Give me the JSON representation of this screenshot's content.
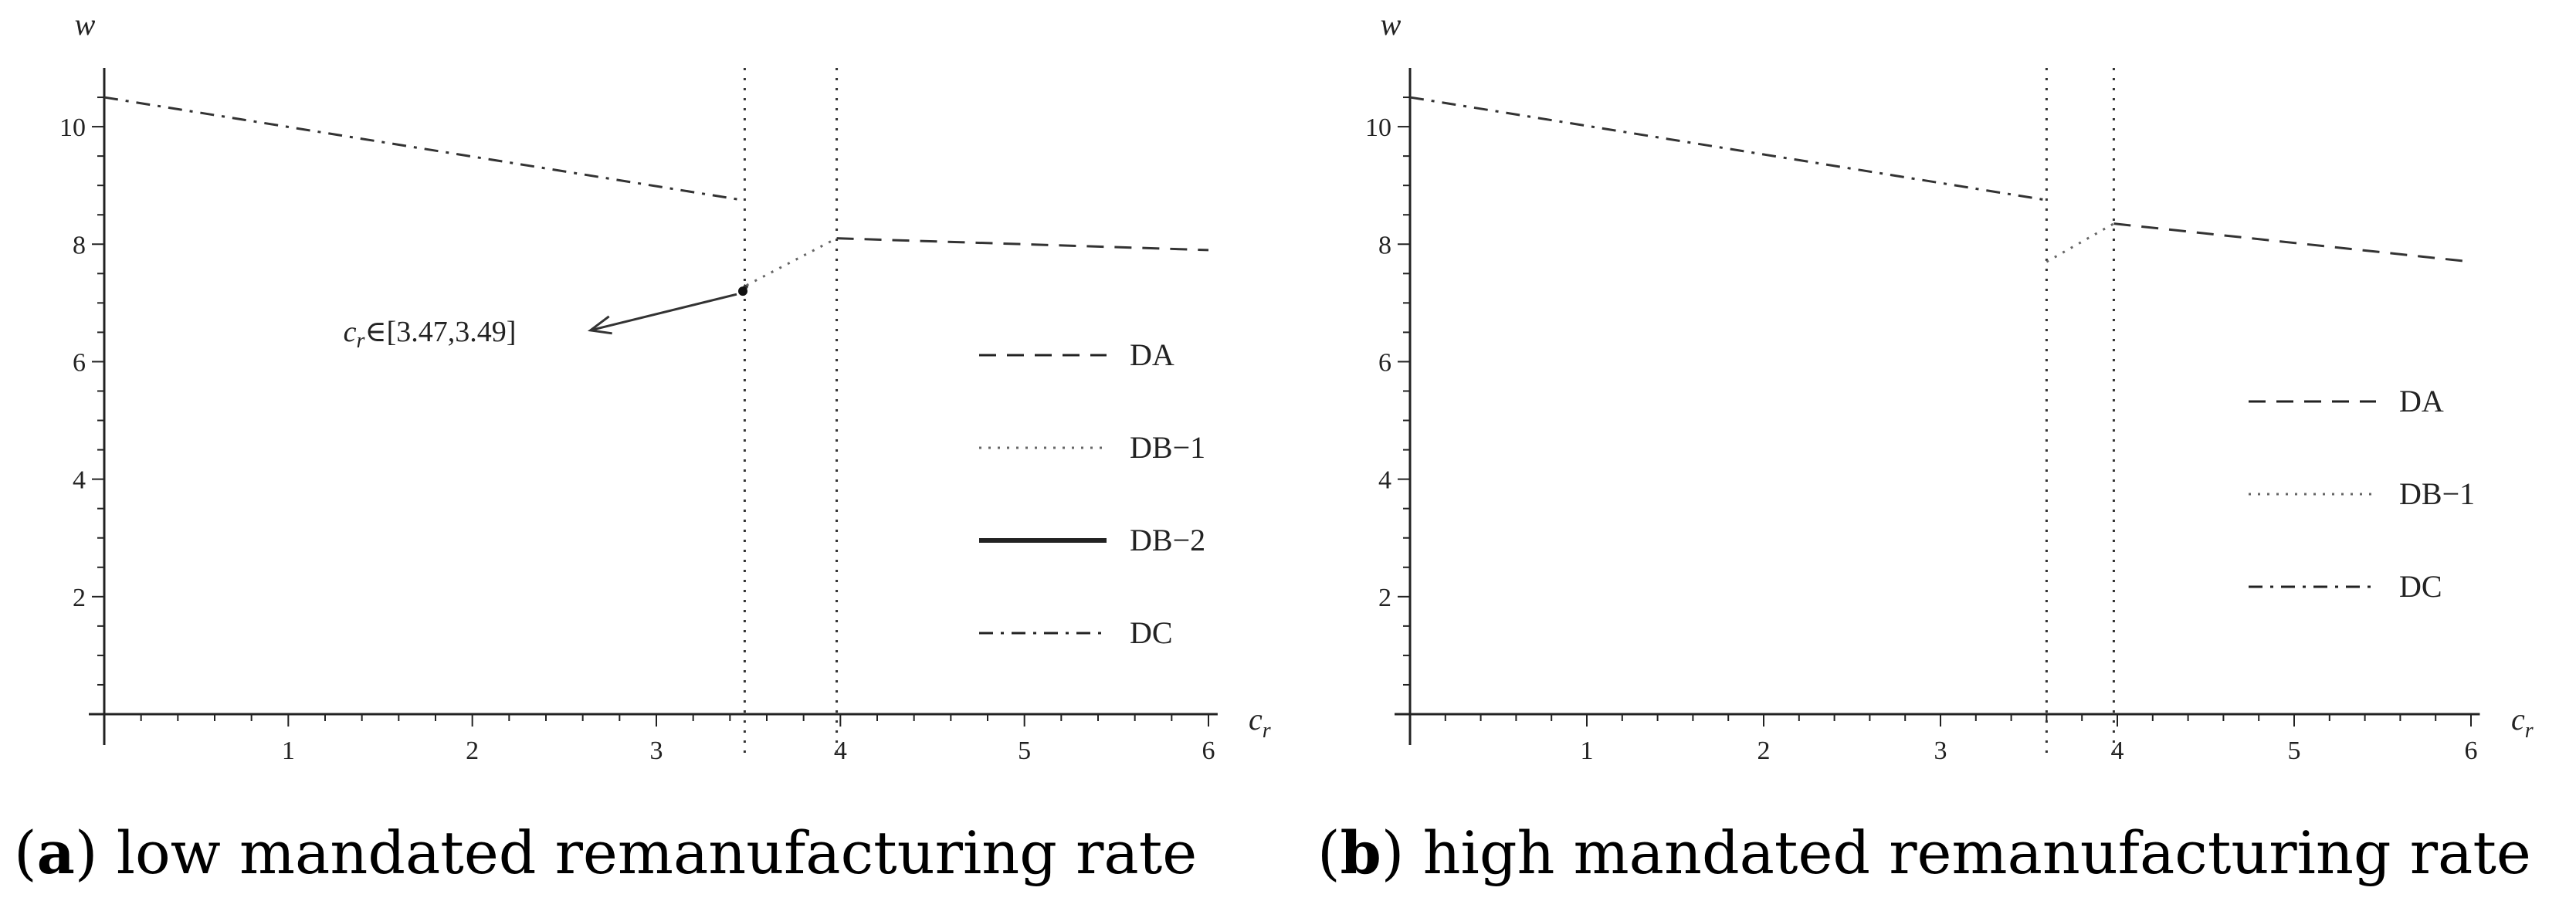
{
  "chart_data": [
    {
      "type": "line",
      "panel_letter": "a",
      "caption": "low mandated remanufacturing rate",
      "xlabel": "c",
      "xlabel_sub": "r",
      "ylabel": "w",
      "xlim": [
        0,
        6
      ],
      "ylim": [
        0,
        11
      ],
      "xticks": [
        1,
        2,
        3,
        4,
        5,
        6
      ],
      "yticks": [
        2,
        4,
        6,
        8,
        10
      ],
      "thresholds": [
        3.48,
        3.98
      ],
      "series": [
        {
          "name": "DA",
          "style": "dashed",
          "points": [
            [
              3.98,
              8.1
            ],
            [
              6.0,
              7.9
            ]
          ]
        },
        {
          "name": "DB−1",
          "style": "dotted",
          "points": [
            [
              3.49,
              7.3
            ],
            [
              3.98,
              8.1
            ]
          ]
        },
        {
          "name": "DB−2",
          "style": "solid",
          "points": [
            [
              3.47,
              7.2
            ],
            [
              3.49,
              7.3
            ]
          ]
        },
        {
          "name": "DC",
          "style": "dashdot",
          "points": [
            [
              0.0,
              10.5
            ],
            [
              3.47,
              8.75
            ]
          ]
        }
      ],
      "legend_position": "right",
      "annotation": {
        "prefix": "c",
        "sub": "r",
        "text": "∈[3.47,3.49]",
        "x_label": 2.6,
        "y_label": 6.35,
        "x_point": 3.47,
        "y_point": 7.2
      }
    },
    {
      "type": "line",
      "panel_letter": "b",
      "caption": "high mandated remanufacturing rate",
      "xlabel": "c",
      "xlabel_sub": "r",
      "ylabel": "w",
      "xlim": [
        0,
        6
      ],
      "ylim": [
        0,
        11
      ],
      "xticks": [
        1,
        2,
        3,
        4,
        5,
        6
      ],
      "yticks": [
        2,
        4,
        6,
        8,
        10
      ],
      "thresholds": [
        3.6,
        3.98
      ],
      "series": [
        {
          "name": "DA",
          "style": "dashed",
          "points": [
            [
              3.98,
              8.35
            ],
            [
              6.0,
              7.7
            ]
          ]
        },
        {
          "name": "DB−1",
          "style": "dotted",
          "points": [
            [
              3.6,
              7.7
            ],
            [
              3.98,
              8.35
            ]
          ]
        },
        {
          "name": "DC",
          "style": "dashdot",
          "points": [
            [
              0.0,
              10.5
            ],
            [
              3.6,
              8.75
            ]
          ]
        }
      ],
      "legend_position": "right"
    }
  ]
}
